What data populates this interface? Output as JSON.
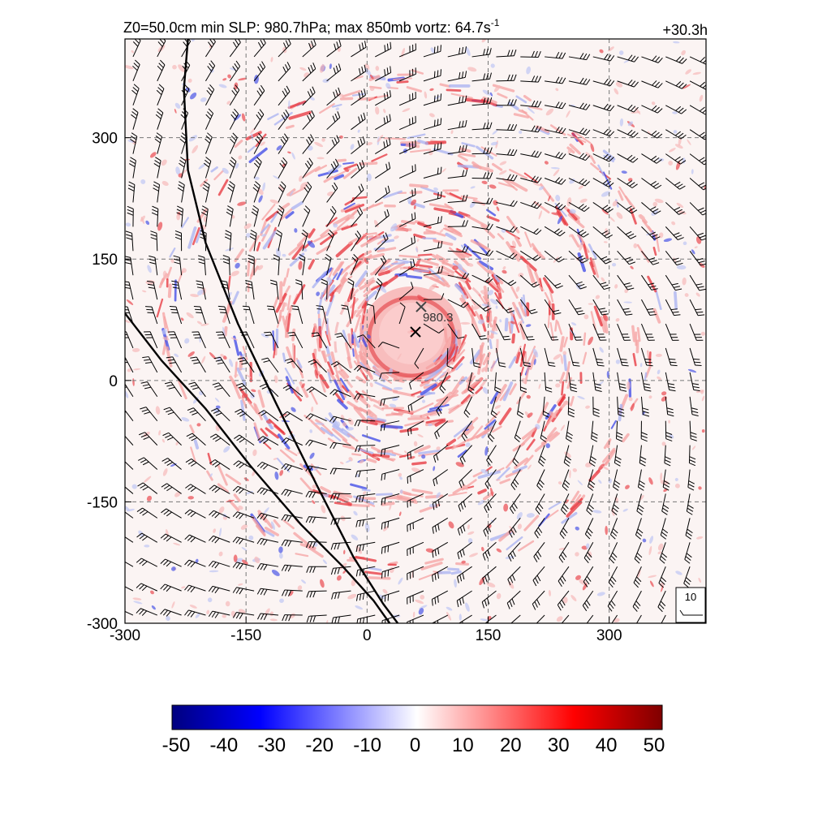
{
  "chart_data": {
    "type": "heatmap",
    "title_left_prefix": "Z0=50.0cm  min SLP: 980.7hPa; max 850mb vortz:  64.7s",
    "title_left_sup": "-1",
    "title_right": "+30.3h",
    "x_ticks": [
      "-300",
      "-150",
      "0",
      "150",
      "300"
    ],
    "y_ticks": [
      "-300",
      "-150",
      "0",
      "150",
      "300"
    ],
    "x_tick_values": [
      -300,
      -150,
      0,
      150,
      300
    ],
    "y_tick_values": [
      -300,
      -150,
      0,
      150,
      300
    ],
    "xlim": [
      -300,
      420
    ],
    "ylim": [
      -300,
      422
    ],
    "grid": "dashed",
    "colorbar": {
      "ticks": [
        "-50",
        "-40",
        "-30",
        "-20",
        "-10",
        "0",
        "10",
        "20",
        "30",
        "40",
        "50"
      ],
      "range": [
        -50,
        50
      ],
      "colors": [
        "#00007f",
        "#0000ff",
        "#ffffff",
        "#ff0000",
        "#7f0000"
      ]
    },
    "center_marks": [
      {
        "symbol": "x",
        "x": 60,
        "y": 60
      },
      {
        "symbol": "x",
        "x": 67,
        "y": 91,
        "label": "980.3"
      }
    ],
    "coastlines": [
      [
        [
          -222,
          422
        ],
        [
          -227,
          360
        ],
        [
          -222,
          260
        ],
        [
          -200,
          170
        ],
        [
          -160,
          70
        ],
        [
          -112,
          -30
        ],
        [
          -62,
          -130
        ],
        [
          -17,
          -218
        ],
        [
          20,
          -276
        ],
        [
          38,
          -300
        ]
      ],
      [
        [
          -300,
          83
        ],
        [
          -255,
          25
        ],
        [
          -200,
          -35
        ],
        [
          -145,
          -105
        ],
        [
          -82,
          -178
        ],
        [
          -30,
          -230
        ],
        [
          8,
          -272
        ],
        [
          28,
          -300
        ]
      ]
    ],
    "reference_vector_label": "10"
  }
}
